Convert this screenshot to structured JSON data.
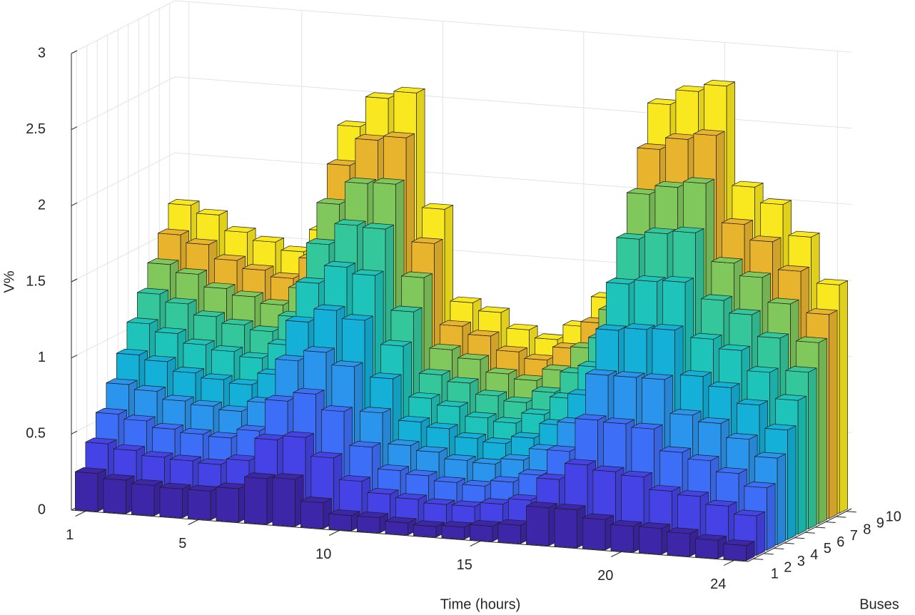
{
  "chart_data": {
    "type": "bar3",
    "xlabel": "Time (hours)",
    "ylabel": "Buses",
    "zlabel": "V%",
    "x": [
      1,
      2,
      3,
      4,
      5,
      6,
      7,
      8,
      9,
      10,
      11,
      12,
      13,
      14,
      15,
      16,
      17,
      18,
      19,
      20,
      21,
      22,
      23,
      24
    ],
    "xticks": [
      1,
      5,
      10,
      15,
      20,
      24
    ],
    "buses": [
      1,
      2,
      3,
      4,
      5,
      6,
      7,
      8,
      9,
      10
    ],
    "zlim": [
      0,
      3
    ],
    "zticks": [
      0,
      0.5,
      1,
      1.5,
      2,
      2.5,
      3
    ],
    "grid": true,
    "series": [
      {
        "color": "#3d26a8",
        "values": [
          0.25,
          0.22,
          0.2,
          0.19,
          0.19,
          0.22,
          0.3,
          0.31,
          0.17,
          0.1,
          0.1,
          0.08,
          0.07,
          0.08,
          0.1,
          0.12,
          0.25,
          0.25,
          0.2,
          0.17,
          0.17,
          0.15,
          0.12,
          0.1
        ]
      },
      {
        "color": "#4543e5",
        "values": [
          0.41,
          0.38,
          0.35,
          0.34,
          0.33,
          0.37,
          0.52,
          0.55,
          0.43,
          0.29,
          0.22,
          0.2,
          0.18,
          0.18,
          0.21,
          0.25,
          0.4,
          0.51,
          0.48,
          0.46,
          0.38,
          0.36,
          0.31,
          0.26
        ]
      },
      {
        "color": "#3d6ef7",
        "values": [
          0.57,
          0.54,
          0.5,
          0.48,
          0.47,
          0.53,
          0.74,
          0.8,
          0.7,
          0.48,
          0.34,
          0.32,
          0.29,
          0.28,
          0.32,
          0.38,
          0.55,
          0.77,
          0.76,
          0.74,
          0.6,
          0.56,
          0.49,
          0.41
        ]
      },
      {
        "color": "#2b94ec",
        "values": [
          0.73,
          0.7,
          0.65,
          0.63,
          0.61,
          0.68,
          0.97,
          1.04,
          0.96,
          0.67,
          0.47,
          0.44,
          0.4,
          0.39,
          0.43,
          0.51,
          0.7,
          1.03,
          1.03,
          1.03,
          0.81,
          0.77,
          0.68,
          0.57
        ]
      },
      {
        "color": "#14b0d8",
        "values": [
          0.89,
          0.86,
          0.8,
          0.77,
          0.75,
          0.83,
          1.19,
          1.28,
          1.23,
          0.86,
          0.59,
          0.56,
          0.51,
          0.49,
          0.54,
          0.64,
          0.85,
          1.29,
          1.31,
          1.32,
          1.03,
          0.97,
          0.87,
          0.72
        ]
      },
      {
        "color": "#1ec4b9",
        "values": [
          1.06,
          1.01,
          0.95,
          0.92,
          0.89,
          0.99,
          1.41,
          1.53,
          1.49,
          1.04,
          0.71,
          0.67,
          0.61,
          0.59,
          0.66,
          0.78,
          1.0,
          1.56,
          1.59,
          1.6,
          1.24,
          1.18,
          1.05,
          0.88
        ]
      },
      {
        "color": "#33c79b",
        "values": [
          1.22,
          1.17,
          1.1,
          1.06,
          1.03,
          1.14,
          1.63,
          1.77,
          1.76,
          1.23,
          0.83,
          0.79,
          0.72,
          0.69,
          0.77,
          0.91,
          1.15,
          1.82,
          1.87,
          1.89,
          1.46,
          1.38,
          1.24,
          1.03
        ]
      },
      {
        "color": "#80c75c",
        "values": [
          1.38,
          1.33,
          1.25,
          1.21,
          1.17,
          1.29,
          1.86,
          2.01,
          2.02,
          1.42,
          0.96,
          0.91,
          0.83,
          0.8,
          0.88,
          1.04,
          1.3,
          2.08,
          2.14,
          2.18,
          1.67,
          1.59,
          1.43,
          1.19
        ]
      },
      {
        "color": "#e8b42e",
        "values": [
          1.54,
          1.49,
          1.4,
          1.35,
          1.31,
          1.45,
          2.08,
          2.26,
          2.29,
          1.61,
          1.08,
          1.03,
          0.94,
          0.9,
          0.99,
          1.17,
          1.45,
          2.34,
          2.42,
          2.46,
          1.89,
          1.79,
          1.61,
          1.34
        ]
      },
      {
        "color": "#f9e71f",
        "values": [
          1.7,
          1.65,
          1.55,
          1.5,
          1.45,
          1.6,
          2.3,
          2.5,
          2.55,
          1.8,
          1.2,
          1.15,
          1.05,
          1.0,
          1.1,
          1.3,
          1.6,
          2.6,
          2.7,
          2.75,
          2.1,
          2.0,
          1.8,
          1.5
        ]
      }
    ]
  }
}
